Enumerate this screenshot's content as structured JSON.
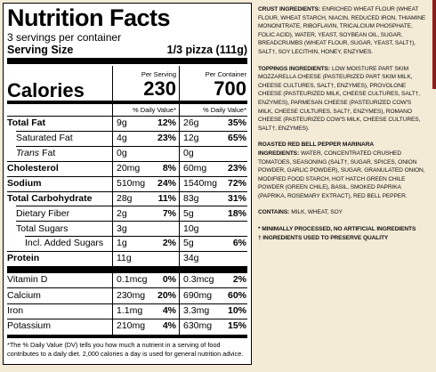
{
  "label": {
    "title": "Nutrition Facts",
    "servings": "3 servings per container",
    "serving_size_label": "Serving Size",
    "serving_size": "1/3 pizza (111g)",
    "per_serving": "Per Serving",
    "per_container": "Per Container",
    "calories_label": "Calories",
    "calories_per_serving": "230",
    "calories_per_container": "700",
    "dv_header": "% Daily Value*",
    "rows": [
      {
        "name": "Total Fat",
        "bold": true,
        "serving": "9g",
        "serving_dv": "12%",
        "container": "26g",
        "container_dv": "35%"
      },
      {
        "name": "Saturated Fat",
        "indent": 1,
        "serving": "4g",
        "serving_dv": "23%",
        "container": "12g",
        "container_dv": "65%"
      },
      {
        "name_italic": "Trans",
        "name": "Fat",
        "indent": 1,
        "serving": "0g",
        "container": "0g"
      },
      {
        "name": "Cholesterol",
        "bold": true,
        "serving": "20mg",
        "serving_dv": "8%",
        "container": "60mg",
        "container_dv": "23%"
      },
      {
        "name": "Sodium",
        "bold": true,
        "serving": "510mg",
        "serving_dv": "24%",
        "container": "1540mg",
        "container_dv": "72%"
      },
      {
        "name": "Total Carbohydrate",
        "bold": true,
        "serving": "28g",
        "serving_dv": "11%",
        "container": "83g",
        "container_dv": "31%"
      },
      {
        "name": "Dietary Fiber",
        "indent": 1,
        "serving": "2g",
        "serving_dv": "7%",
        "container": "5g",
        "container_dv": "18%"
      },
      {
        "name": "Total Sugars",
        "indent": 1,
        "serving": "3g",
        "container": "10g"
      },
      {
        "name": "Incl. Added Sugars",
        "indent": 2,
        "serving": "1g",
        "serving_dv": "2%",
        "container": "5g",
        "container_dv": "6%"
      },
      {
        "name": "Protein",
        "bold": true,
        "serving": "11g",
        "container": "34g"
      }
    ],
    "micros": [
      {
        "name": "Vitamin D",
        "serving": "0.1mcg",
        "serving_dv": "0%",
        "container": "0.3mcg",
        "container_dv": "2%"
      },
      {
        "name": "Calcium",
        "serving": "230mg",
        "serving_dv": "20%",
        "container": "690mg",
        "container_dv": "60%"
      },
      {
        "name": "Iron",
        "serving": "1.1mg",
        "serving_dv": "4%",
        "container": "3.3mg",
        "container_dv": "10%"
      },
      {
        "name": "Potassium",
        "serving": "210mg",
        "serving_dv": "4%",
        "container": "630mg",
        "container_dv": "15%"
      }
    ],
    "footnote": "*The % Daily Value (DV) tells you how much a nutrient in a serving of food contributes to a daily diet. 2,000 calories a day is used for general nutrition advice."
  },
  "ingredients": {
    "sections": [
      {
        "heading": "CRUST INGREDIENTS:",
        "text": "ENRICHED WHEAT FLOUR (WHEAT FLOUR, WHEAT STARCH, NIACIN, REDUCED IRON, THIAMINE MONONITRATE, RIBOFLAVIN, TRICALCIUM PHOSPHATE, FOLIC ACID), WATER, YEAST, SOYBEAN OIL, SUGAR, BREADCRUMBS (WHEAT FLOUR, SUGAR, YEAST, SALT†), SALT†, SOY LECITHIN, HONEY, ENZYMES."
      },
      {
        "heading": "TOPPINGS INGREDIENTS:",
        "text": "LOW MOISTURE PART SKIM MOZZARELLA CHEESE (PASTEURIZED PART SKIM MILK, CHEESE CULTURES, SALT†, ENZYMES), PROVOLONE CHEESE (PASTEURIZED MILK, CHEESE CULTURES, SALT†, ENZYMES), PARMESAN CHEESE (PASTEURIZED COW'S MILK, CHEESE CULTURES, SALT†, ENZYMES), ROMANO CHEESE (PASTEURIZED COW'S MILK, CHEESE CULTURES, SALT†, ENZYMES)."
      },
      {
        "heading": "ROASTED RED BELL PEPPER MARINARA INGREDIENTS:",
        "text": "WATER, CONCENTRATED CRUSHED TOMATOES, SEASONING (SALT†, SUGAR, SPICES, ONION POWDER, GARLIC POWDER), SUGAR, GRANULATED ONION, MODIFIED FOOD STARCH, HOT HATCH GREEN CHILE POWDER (GREEN CHILE), BASIL, SMOKED PAPRIKA (PAPRIKA, ROSEMARY EXTRACT), RED BELL PEPPER."
      },
      {
        "heading": "CONTAINS:",
        "text": "MILK, WHEAT, SOY"
      }
    ],
    "notes": [
      "* MINIMALLY PROCESSED, NO ARTIFICIAL INGREDIENTS",
      "† INGREDIENTS USED TO PRESERVE QUALITY"
    ]
  }
}
